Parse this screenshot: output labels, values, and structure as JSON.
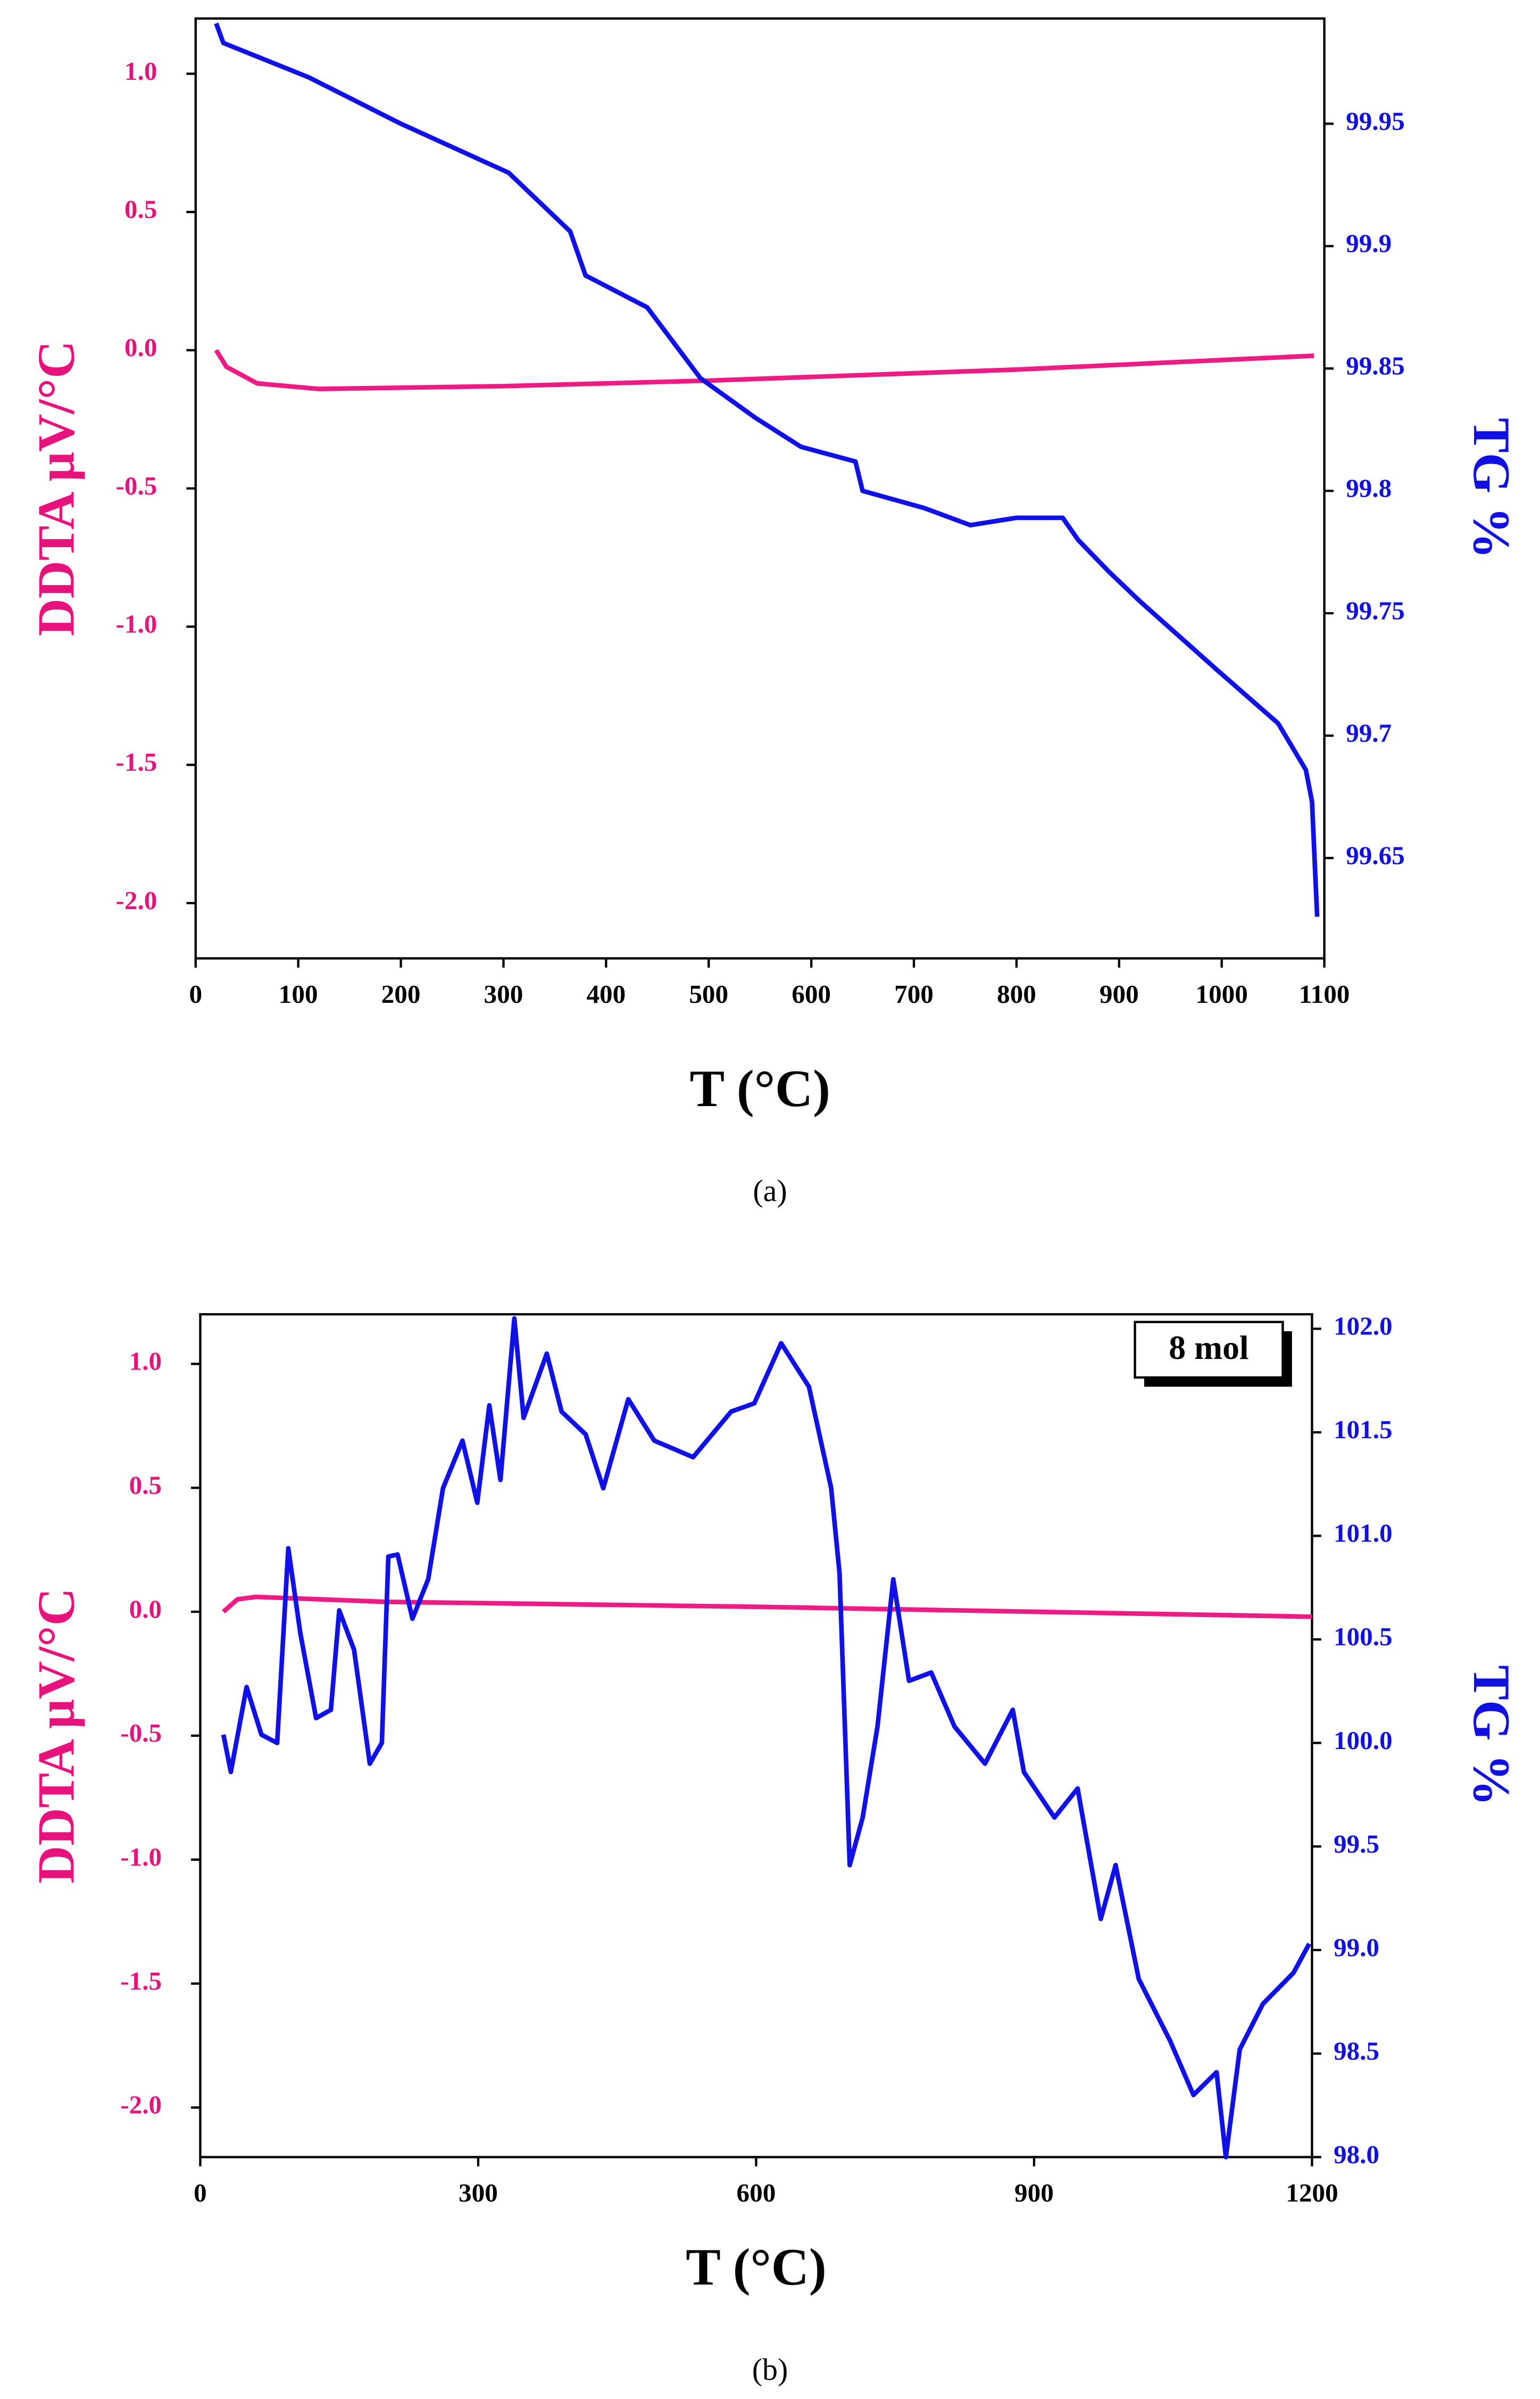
{
  "chart_data": [
    {
      "type": "line",
      "caption": "(a)",
      "xlabel": "T (°C)",
      "ylabel": "DDTA μV/°C",
      "y2label": "TG %",
      "xlim": [
        0,
        1100
      ],
      "xticks": [
        0,
        100,
        200,
        300,
        400,
        500,
        600,
        700,
        800,
        900,
        1000,
        1100
      ],
      "ylim": [
        -2.2,
        1.2
      ],
      "yticks": [
        {
          "value": -2.0,
          "label": "-2.0"
        },
        -1.5,
        {
          "value": -1.0,
          "label": "-1.0"
        },
        -0.5,
        {
          "value": 0.0,
          "label": "0.0"
        },
        0.5,
        {
          "value": 1.0,
          "label": "1.0"
        }
      ],
      "y2lim": [
        99.609,
        99.993
      ],
      "y2ticks": [
        99.65,
        99.7,
        99.75,
        99.8,
        99.85,
        99.9,
        99.95
      ],
      "ycolor": "#e8127c",
      "y2color": "#1010e0",
      "series": [
        {
          "color": "#ee1b84",
          "axis": "y",
          "x": [
            20,
            30,
            60,
            120,
            300,
            500,
            800,
            1090
          ],
          "values": [
            0.0,
            -0.06,
            -0.12,
            -0.14,
            -0.13,
            -0.11,
            -0.07,
            -0.02
          ]
        },
        {
          "color": "#1010e8",
          "axis": "y2",
          "x": [
            20,
            27,
            110,
            200,
            305,
            365,
            380,
            440,
            492,
            545,
            590,
            643,
            650,
            710,
            755,
            800,
            845,
            860,
            890,
            920,
            995,
            1055,
            1082,
            1088,
            1093
          ],
          "values": [
            99.991,
            99.983,
            99.969,
            99.95,
            99.93,
            99.906,
            99.888,
            99.875,
            99.846,
            99.83,
            99.818,
            99.812,
            99.8,
            99.793,
            99.786,
            99.789,
            99.789,
            99.78,
            99.767,
            99.755,
            99.727,
            99.705,
            99.686,
            99.673,
            99.626
          ]
        }
      ]
    },
    {
      "type": "line",
      "caption": "(b)",
      "xlabel": "T (°C)",
      "ylabel": "DDTA μV/°C",
      "y2label": "TG %",
      "annotation": "8 mol",
      "xlim": [
        0,
        1200
      ],
      "xticks": [
        0,
        300,
        600,
        900,
        1200
      ],
      "ylim": [
        -2.2,
        1.2
      ],
      "yticks": [
        {
          "value": -2.0,
          "label": "-2.0"
        },
        -1.5,
        {
          "value": -1.0,
          "label": "-1.0"
        },
        -0.5,
        {
          "value": 0.0,
          "label": "0.0"
        },
        0.5,
        {
          "value": 1.0,
          "label": "1.0"
        }
      ],
      "y2lim": [
        98.0,
        102.07
      ],
      "y2ticks": [
        {
          "value": 98,
          "label": "98.0"
        },
        98.5,
        {
          "value": 99,
          "label": "99.0"
        },
        99.5,
        {
          "value": 100,
          "label": "100.0"
        },
        100.5,
        {
          "value": 101,
          "label": "101.0"
        },
        101.5,
        {
          "value": 102,
          "label": "102.0"
        }
      ],
      "ycolor": "#e8127c",
      "y2color": "#1010e0",
      "series": [
        {
          "color": "#ee1b84",
          "axis": "y",
          "x": [
            25,
            40,
            60,
            200,
            600,
            900,
            1200
          ],
          "values": [
            0.0,
            0.05,
            0.06,
            0.04,
            0.02,
            0.0,
            -0.02
          ]
        },
        {
          "color": "#1010e8",
          "axis": "y2",
          "x": [
            25,
            33,
            50,
            66,
            83,
            95,
            108,
            125,
            141,
            150,
            166,
            183,
            196,
            203,
            213,
            229,
            246,
            262,
            283,
            299,
            312,
            324,
            339,
            349,
            374,
            390,
            416,
            435,
            462,
            490,
            532,
            573,
            598,
            627,
            657,
            681,
            690,
            701,
            715,
            731,
            748,
            765,
            789,
            814,
            847,
            877,
            889,
            922,
            947,
            972,
            988,
            1013,
            1047,
            1072,
            1097,
            1107,
            1122,
            1147,
            1180,
            1197
          ],
          "values": [
            100.04,
            99.86,
            100.27,
            100.04,
            100.0,
            100.94,
            100.53,
            100.12,
            100.16,
            100.64,
            100.45,
            99.9,
            100.0,
            100.9,
            100.91,
            100.6,
            100.79,
            101.23,
            101.46,
            101.16,
            101.63,
            101.27,
            102.05,
            101.57,
            101.88,
            101.6,
            101.49,
            101.23,
            101.66,
            101.46,
            101.38,
            101.6,
            101.64,
            101.93,
            101.72,
            101.23,
            100.82,
            99.41,
            99.64,
            100.08,
            100.79,
            100.3,
            100.34,
            100.08,
            99.9,
            100.16,
            99.86,
            99.64,
            99.78,
            99.15,
            99.41,
            98.86,
            98.56,
            98.3,
            98.41,
            98.0,
            98.52,
            98.74,
            98.89,
            99.03
          ]
        }
      ]
    }
  ]
}
